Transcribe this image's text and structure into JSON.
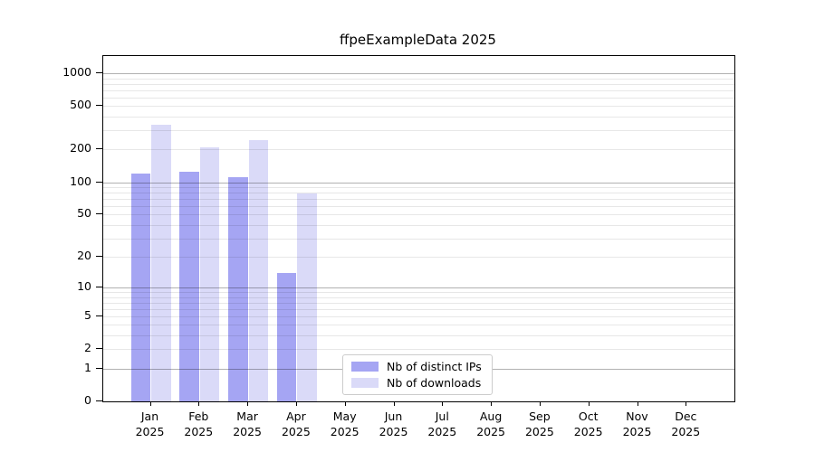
{
  "chart_data": {
    "type": "bar",
    "title": "ffpeExampleData 2025",
    "categories": [
      "Jan 2025",
      "Feb 2025",
      "Mar 2025",
      "Apr 2025",
      "May 2025",
      "Jun 2025",
      "Jul 2025",
      "Aug 2025",
      "Sep 2025",
      "Oct 2025",
      "Nov 2025",
      "Dec 2025"
    ],
    "series": [
      {
        "name": "Nb of distinct IPs",
        "color": "#a5a5f3",
        "values": [
          119,
          124,
          112,
          14,
          0,
          0,
          0,
          0,
          0,
          0,
          0,
          0
        ]
      },
      {
        "name": "Nb of downloads",
        "color": "#dadaf8",
        "values": [
          335,
          210,
          245,
          78,
          0,
          0,
          0,
          0,
          0,
          0,
          0,
          0
        ]
      }
    ],
    "xlabel": "",
    "ylabel": "",
    "yscale": "log(value+1)",
    "ylim": [
      0,
      1380
    ],
    "yticks": [
      0,
      1,
      2,
      5,
      10,
      20,
      50,
      100,
      200,
      500,
      1000
    ],
    "grid": "on",
    "legend_position": "bottom-center",
    "colors": {
      "major_gridline": "rgba(0,0,0,0.30)",
      "minor_gridline": "rgba(0,0,0,0.095)",
      "axis_frame": "#000000",
      "background": "#ffffff",
      "text": "#000000"
    }
  }
}
